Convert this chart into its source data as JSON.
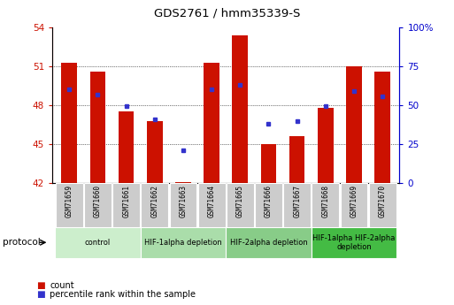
{
  "title": "GDS2761 / hmm35339-S",
  "samples": [
    "GSM71659",
    "GSM71660",
    "GSM71661",
    "GSM71662",
    "GSM71663",
    "GSM71664",
    "GSM71665",
    "GSM71666",
    "GSM71667",
    "GSM71668",
    "GSM71669",
    "GSM71670"
  ],
  "bar_heights": [
    51.3,
    50.6,
    47.5,
    46.8,
    42.1,
    51.3,
    53.4,
    45.0,
    45.6,
    47.8,
    51.0,
    50.6
  ],
  "blue_positions": [
    49.2,
    48.8,
    47.9,
    46.9,
    44.5,
    49.2,
    49.6,
    46.6,
    46.8,
    47.9,
    49.1,
    48.7
  ],
  "ylim_left": [
    42,
    54
  ],
  "yticks_left": [
    42,
    45,
    48,
    51,
    54
  ],
  "yticks_right": [
    0,
    25,
    50,
    75,
    100
  ],
  "ylim_right": [
    0,
    100
  ],
  "bar_color": "#cc1100",
  "blue_color": "#3333cc",
  "bar_bottom": 42,
  "protocols": [
    {
      "label": "control",
      "start": 0,
      "end": 3,
      "color": "#cceecc"
    },
    {
      "label": "HIF-1alpha depletion",
      "start": 3,
      "end": 6,
      "color": "#aaddaa"
    },
    {
      "label": "HIF-2alpha depletion",
      "start": 6,
      "end": 9,
      "color": "#88cc88"
    },
    {
      "label": "HIF-1alpha HIF-2alpha\ndepletion",
      "start": 9,
      "end": 12,
      "color": "#44bb44"
    }
  ],
  "protocol_label": "protocol",
  "legend_count_color": "#cc1100",
  "legend_blue_color": "#3333cc",
  "ylabel_right_color": "#0000cc",
  "grid_color": "#000000",
  "tick_label_color_left": "#cc1100",
  "tick_label_color_right": "#0000cc",
  "plot_bg_color": "#ffffff",
  "sample_bg_color": "#cccccc"
}
